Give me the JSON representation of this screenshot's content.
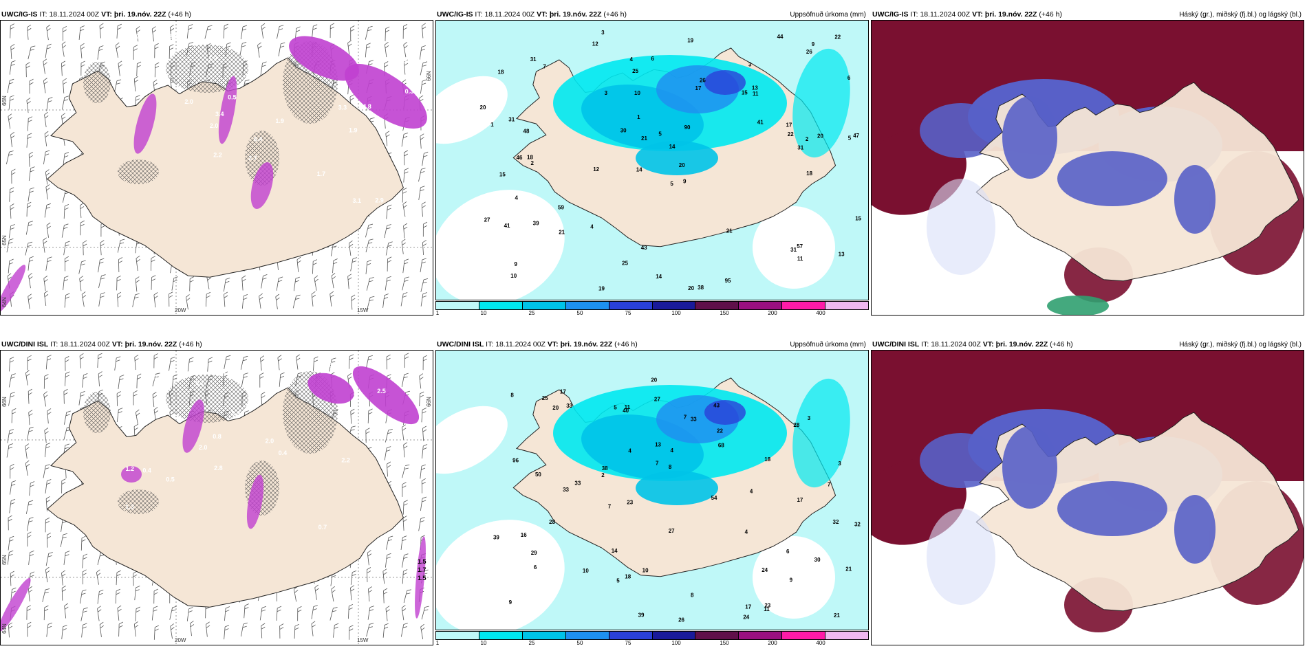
{
  "colors": {
    "land": "#f5e6d6",
    "sea": "#ffffff",
    "precip_light": "#bff8f8",
    "precip_1": "#00e8f0",
    "precip_2": "#00c3e8",
    "precip_3": "#1e90f0",
    "precip_4": "#2a40d8",
    "precip_5": "#1a1a9a",
    "precip_6": "#60104a",
    "precip_7": "#9a1080",
    "precip_8": "#ff1aa8",
    "precip_9": "#f0b8f0",
    "cloud_high": "#7a1030",
    "cloud_mid": "#5860c8",
    "cloud_low": "#d8e0f8",
    "temp_neg": "#c040d0"
  },
  "rows": [
    {
      "name": "uwc-ig-is",
      "panels": [
        {
          "model": "UWC/IG-IS",
          "it_label": "IT:",
          "it_value": "18.11.2024 00Z",
          "vt_label": "VT:",
          "vt_value": "þri. 19.nóv. 22Z",
          "lead": "(+46 h)",
          "right_title": "",
          "lon_labels": [
            "20W",
            "15W"
          ],
          "lat_labels": [
            "66N",
            "65N",
            "64N"
          ],
          "values": [
            "6.4",
            "2.0",
            "2.3",
            "1.9",
            "2.9",
            "1.9",
            "2.7",
            "2.0",
            "2.2",
            "3.3",
            "4.8",
            "2.3",
            "2.3",
            "3.1",
            "3.4",
            "1.7",
            "1.9",
            "0.3",
            "0.3",
            "0.5"
          ]
        },
        {
          "model": "UWC/IG-IS",
          "it_label": "IT:",
          "it_value": "18.11.2024 00Z",
          "vt_label": "VT:",
          "vt_value": "þri. 19.nóv. 22Z",
          "lead": "(+46 h)",
          "right_title": "Uppsöfnuð úrkoma (mm)",
          "values": [
            "3",
            "3",
            "5",
            "14",
            "9",
            "18",
            "18",
            "15",
            "15",
            "17",
            "14",
            "10",
            "12",
            "12",
            "20",
            "38",
            "43",
            "44",
            "41",
            "59",
            "48",
            "46",
            "47",
            "20",
            "27",
            "31",
            "21",
            "22",
            "57",
            "41",
            "31",
            "26",
            "39",
            "30",
            "21",
            "15",
            "17",
            "25",
            "22",
            "6",
            "9",
            "19",
            "95",
            "31",
            "14",
            "11",
            "11",
            "13",
            "20",
            "20",
            "25",
            "31",
            "90",
            "26",
            "19",
            "21",
            "1",
            "5",
            "9",
            "10",
            "13",
            "18",
            "7",
            "4",
            "5",
            "1",
            "2",
            "2",
            "3",
            "6",
            "4",
            "4"
          ]
        },
        {
          "model": "UWC/IG-IS",
          "it_label": "IT:",
          "it_value": "18.11.2024 00Z",
          "vt_label": "VT:",
          "vt_value": "þri. 19.nóv. 22Z",
          "lead": "(+46 h)",
          "right_title": "Háský (gr.), miðský (fj.bl.) og lágský (bl.)"
        }
      ]
    },
    {
      "name": "uwc-dini-isl",
      "panels": [
        {
          "model": "UWC/DINI ISL",
          "it_label": "IT:",
          "it_value": "18.11.2024 00Z",
          "vt_label": "VT:",
          "vt_value": "þri. 19.nóv. 22Z",
          "lead": "(+46 h)",
          "right_title": "",
          "lon_labels": [
            "20W",
            "15W"
          ],
          "lat_labels": [
            "66N",
            "65N",
            "64N"
          ],
          "values": [
            "2.0",
            "1.2",
            "0.6",
            "0.8",
            "0.7",
            "2.5",
            "1.3",
            "2.2",
            "2.2",
            "1.6",
            "2.8",
            "0.4",
            "0.9",
            "1.2",
            "0.5",
            "3.5",
            "0.7",
            "1.2",
            "2.0",
            "0.4",
            "1.5",
            "1.7",
            "1.5"
          ]
        },
        {
          "model": "UWC/DINI ISL",
          "it_label": "IT:",
          "it_value": "18.11.2024 00Z",
          "vt_label": "VT:",
          "vt_value": "þri. 19.nóv. 22Z",
          "lead": "(+46 h)",
          "right_title": "Uppsöfnuð úrkoma (mm)",
          "values": [
            "5",
            "4",
            "7",
            "3",
            "7",
            "4",
            "22",
            "23",
            "8",
            "24",
            "32",
            "54",
            "68",
            "27",
            "40",
            "43",
            "50",
            "29",
            "39",
            "18",
            "33",
            "33",
            "27",
            "21",
            "26",
            "28",
            "24",
            "33",
            "17",
            "18",
            "23",
            "20",
            "13",
            "14",
            "39",
            "25",
            "11",
            "21",
            "20",
            "28",
            "38",
            "30",
            "96",
            "32",
            "33",
            "10",
            "9",
            "8",
            "7",
            "16",
            "17",
            "11",
            "5",
            "3",
            "4",
            "6",
            "17",
            "6",
            "9",
            "7",
            "2",
            "4",
            "8",
            "10"
          ]
        },
        {
          "model": "UWC/DINI ISL",
          "it_label": "IT:",
          "it_value": "18.11.2024 00Z",
          "vt_label": "VT:",
          "vt_value": "þri. 19.nóv. 22Z",
          "lead": "(+46 h)",
          "right_title": "Háský (gr.), miðský (fj.bl.) og lágský (bl.)"
        }
      ]
    }
  ],
  "colorbar": {
    "ticks": [
      "1",
      "10",
      "25",
      "50",
      "75",
      "100",
      "150",
      "200",
      "400"
    ]
  }
}
